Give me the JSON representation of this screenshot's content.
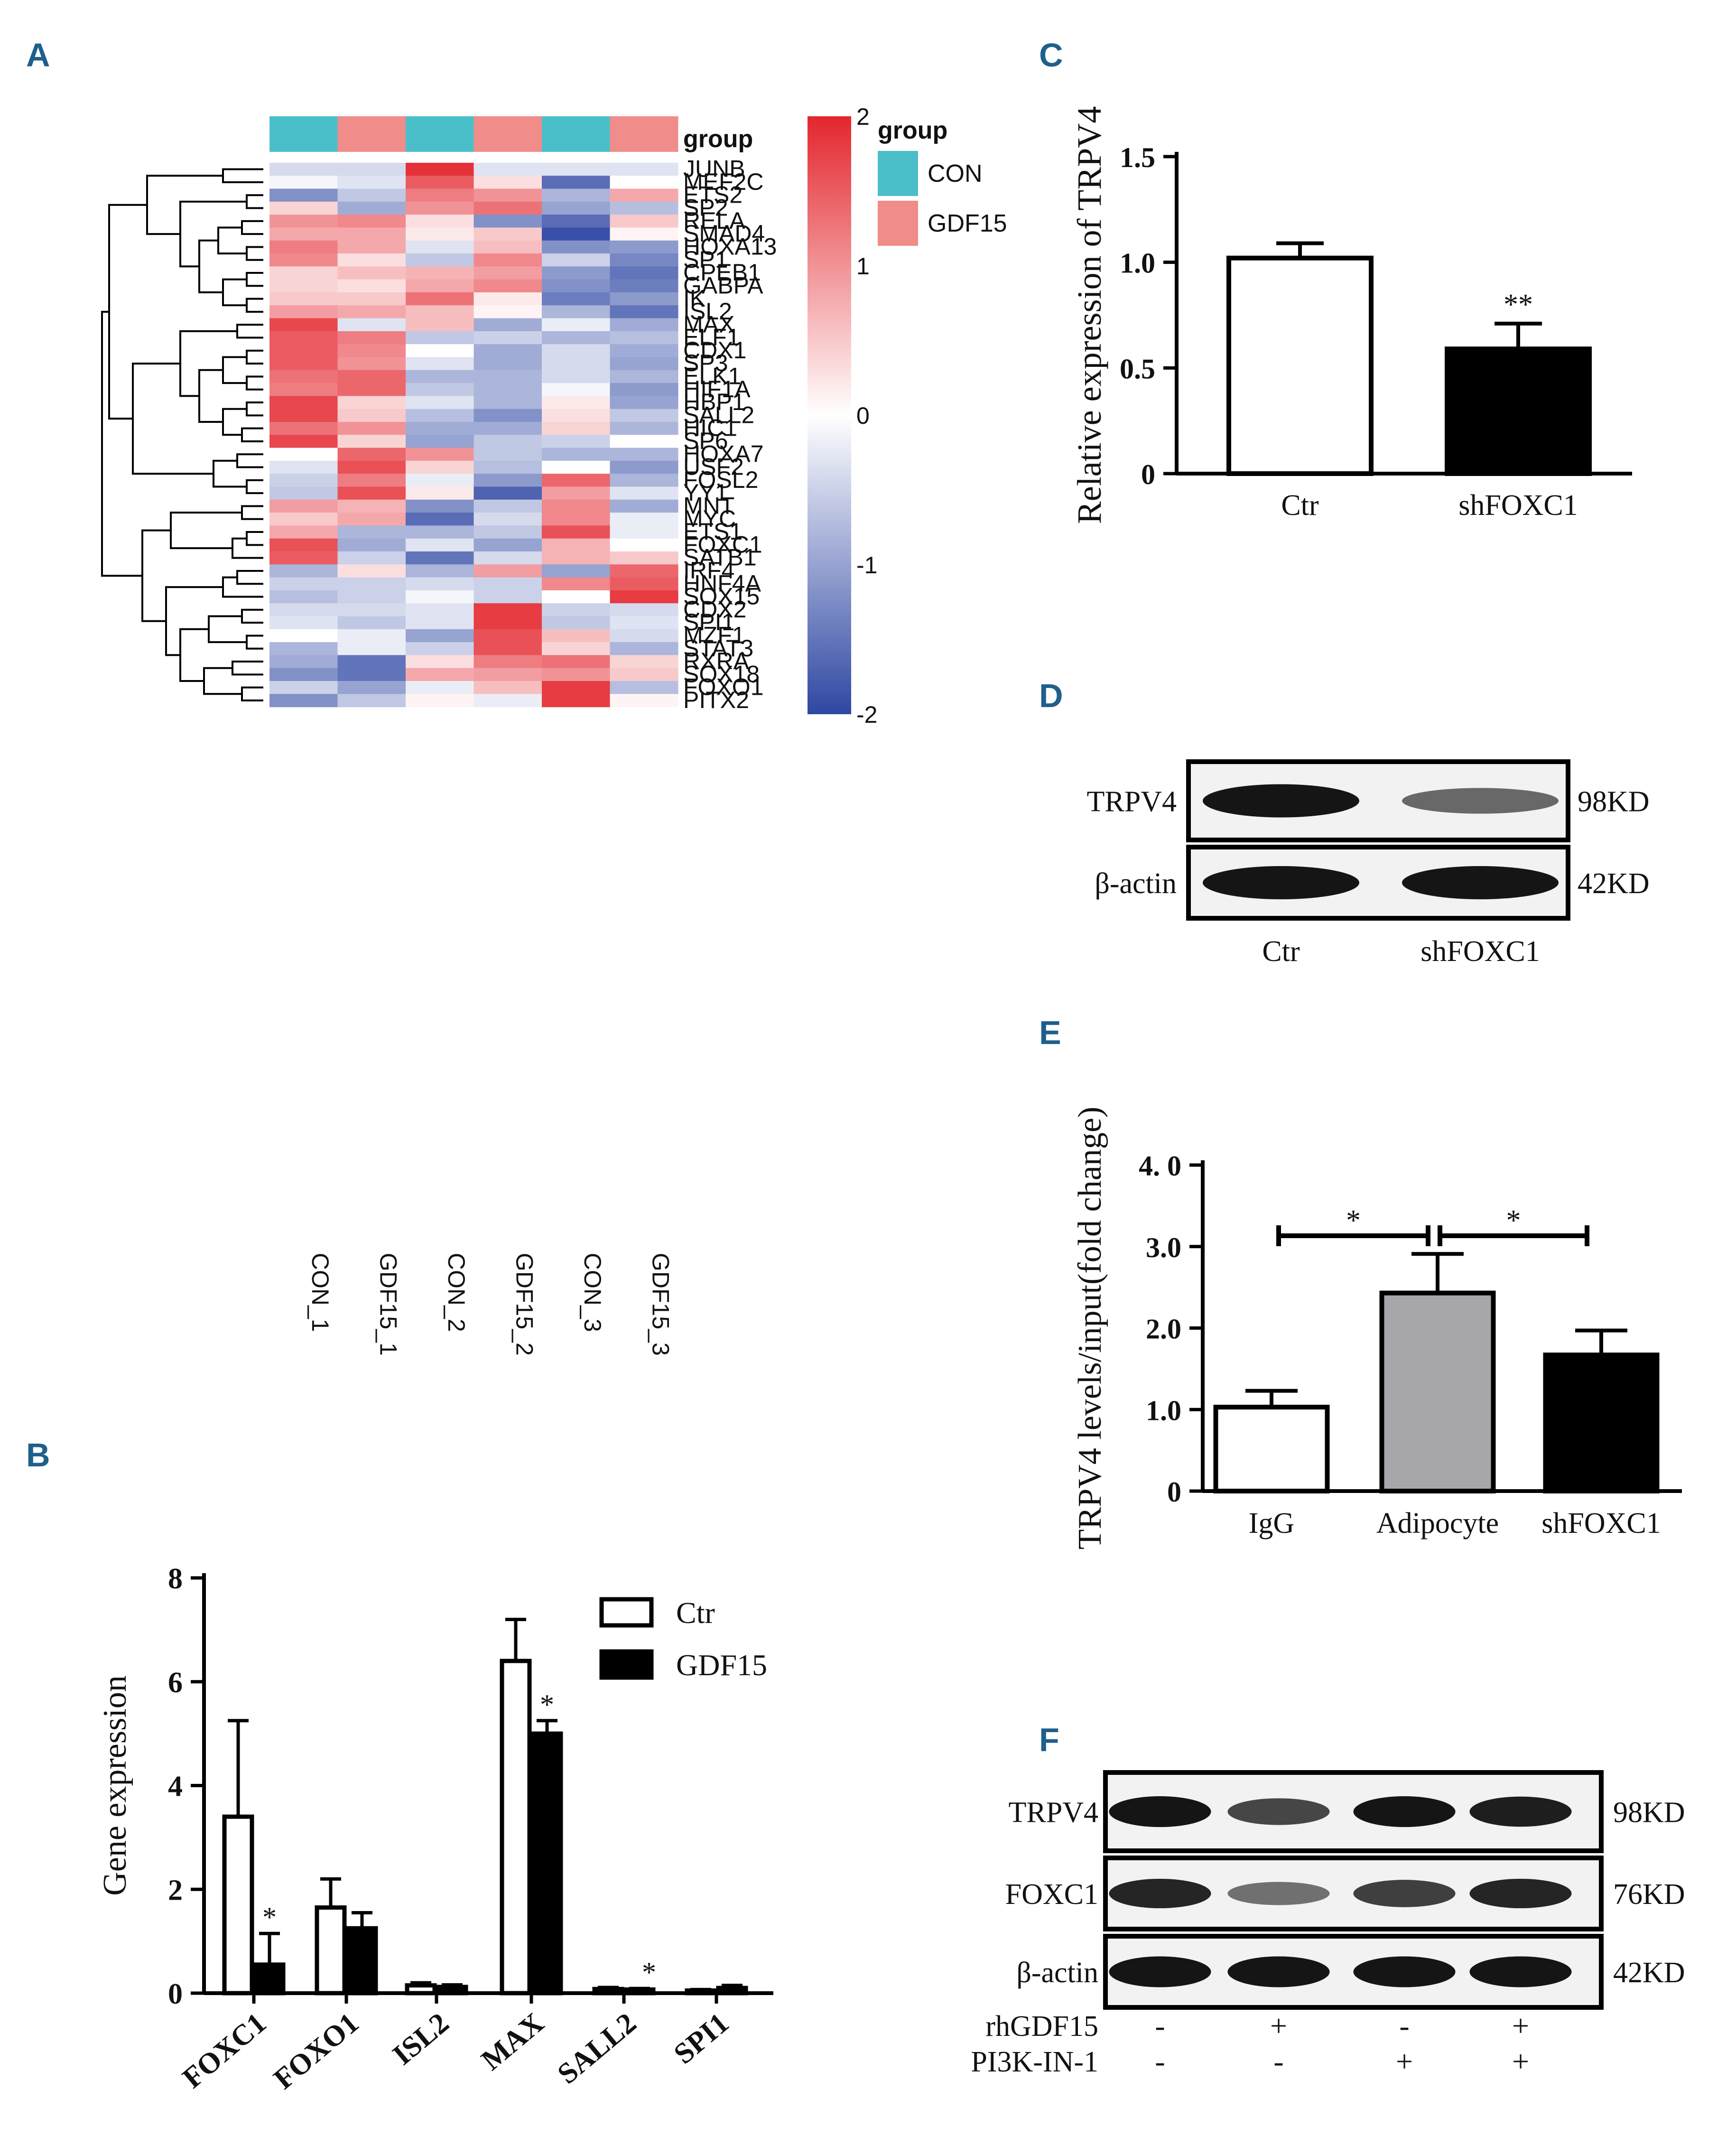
{
  "panels": {
    "a": "A",
    "b": "B",
    "c": "C",
    "d": "D",
    "e": "E",
    "f": "F"
  },
  "heatmap": {
    "samples": [
      "CON_1",
      "GDF15_1",
      "CON_2",
      "GDF15_2",
      "CON_3",
      "GDF15_3"
    ],
    "sample_groups": [
      "CON",
      "GDF15",
      "CON",
      "GDF15",
      "CON",
      "GDF15"
    ],
    "group_label": "group",
    "legend_title": "group",
    "legend_items": [
      {
        "label": "CON",
        "color": "#4bbfc9"
      },
      {
        "label": "GDF15",
        "color": "#f08c8a"
      }
    ],
    "scale_ticks": [
      "2",
      "1",
      "0",
      "-1",
      "-2"
    ],
    "scale_colors": {
      "high": "#e3262d",
      "mid": "#ffffff",
      "low": "#2f47a3"
    },
    "genes": [
      "JUNB",
      "MEF2C",
      "ETS2",
      "SP2",
      "RELA",
      "SMAD4",
      "HOXA13",
      "SP1",
      "CPEB1",
      "GABPA",
      "IK",
      "ISL2",
      "MAX",
      "ELF1",
      "CDX1",
      "SP3",
      "ELK1",
      "HIF1A",
      "HBP1",
      "SALL2",
      "HIC1",
      "SP6",
      "HOXA7",
      "USF2",
      "FOSL2",
      "YY1",
      "MNT",
      "MYC",
      "ETS1",
      "FOXC1",
      "SATB1",
      "IRF4",
      "HNF4A",
      "SOX15",
      "CDX2",
      "SPI1",
      "MZF1",
      "STAT3",
      "RXRA",
      "SOX18",
      "FOXO1",
      "PITX2"
    ],
    "values": [
      [
        -0.4,
        -0.4,
        1.9,
        -0.3,
        -0.3,
        -0.3
      ],
      [
        -0.1,
        -0.3,
        1.5,
        0.3,
        -1.6,
        0.0
      ],
      [
        -1.2,
        -0.6,
        1.2,
        1.0,
        -0.8,
        0.8
      ],
      [
        0.4,
        -0.9,
        1.0,
        1.3,
        -1.0,
        -0.7
      ],
      [
        1.0,
        1.1,
        0.3,
        -1.2,
        -1.6,
        0.5
      ],
      [
        0.8,
        0.8,
        0.2,
        0.5,
        -1.9,
        0.1
      ],
      [
        1.2,
        0.8,
        -0.3,
        0.6,
        -1.2,
        -1.1
      ],
      [
        1.1,
        0.3,
        -0.6,
        1.1,
        -0.5,
        -1.3
      ],
      [
        0.4,
        0.6,
        0.7,
        0.9,
        -1.1,
        -1.5
      ],
      [
        0.4,
        0.3,
        0.8,
        1.1,
        -1.2,
        -1.4
      ],
      [
        0.5,
        0.5,
        1.3,
        0.2,
        -1.4,
        -1.1
      ],
      [
        0.9,
        0.8,
        0.6,
        0.1,
        -0.8,
        -1.5
      ],
      [
        1.7,
        -0.3,
        0.6,
        -0.9,
        -0.2,
        -0.9
      ],
      [
        1.5,
        1.2,
        -0.6,
        -0.5,
        -0.8,
        -0.7
      ],
      [
        1.5,
        1.1,
        0.0,
        -0.9,
        -0.4,
        -0.9
      ],
      [
        1.5,
        1.0,
        -0.3,
        -0.9,
        -0.4,
        -1.0
      ],
      [
        1.3,
        1.4,
        -0.8,
        -0.8,
        -0.4,
        -0.8
      ],
      [
        1.2,
        1.4,
        -0.6,
        -0.8,
        -0.1,
        -1.1
      ],
      [
        1.7,
        0.4,
        -0.3,
        -0.8,
        0.2,
        -1.0
      ],
      [
        1.7,
        0.5,
        -0.7,
        -1.2,
        0.3,
        -0.6
      ],
      [
        1.3,
        1.0,
        -0.9,
        -0.9,
        0.4,
        -0.8
      ],
      [
        1.7,
        0.4,
        -1.0,
        -0.6,
        -0.5,
        0.0
      ],
      [
        0.0,
        1.4,
        1.0,
        -0.6,
        -0.8,
        -0.8
      ],
      [
        -0.3,
        1.6,
        0.4,
        -0.7,
        0.0,
        -1.1
      ],
      [
        -0.5,
        1.2,
        -0.2,
        -1.1,
        1.4,
        -0.8
      ],
      [
        -0.6,
        1.6,
        0.2,
        -1.7,
        0.9,
        -0.3
      ],
      [
        0.9,
        0.7,
        -1.2,
        -0.6,
        1.1,
        -0.9
      ],
      [
        0.5,
        0.8,
        -1.6,
        -0.4,
        1.1,
        -0.2
      ],
      [
        0.8,
        -0.8,
        -0.8,
        -0.6,
        1.6,
        -0.2
      ],
      [
        1.6,
        -0.9,
        -0.3,
        -1.0,
        0.7,
        0.0
      ],
      [
        1.5,
        -0.5,
        -1.5,
        -0.4,
        0.7,
        0.5
      ],
      [
        -0.8,
        0.3,
        -0.8,
        0.9,
        -1.0,
        1.4
      ],
      [
        -0.5,
        -0.5,
        -0.4,
        -0.5,
        1.1,
        1.5
      ],
      [
        -0.7,
        -0.5,
        -0.1,
        -0.5,
        0.0,
        1.8
      ],
      [
        -0.4,
        -0.4,
        -0.3,
        1.8,
        -0.5,
        -0.4
      ],
      [
        -0.3,
        -0.6,
        -0.3,
        1.8,
        -0.6,
        -0.3
      ],
      [
        0.0,
        -0.2,
        -1.0,
        1.6,
        0.6,
        -0.4
      ],
      [
        -0.8,
        -0.2,
        -0.5,
        1.6,
        0.4,
        -0.8
      ],
      [
        -0.9,
        -1.5,
        0.3,
        1.2,
        1.3,
        0.4
      ],
      [
        -1.2,
        -1.5,
        0.8,
        0.9,
        1.0,
        0.5
      ],
      [
        -0.5,
        -1.0,
        -0.2,
        0.6,
        1.8,
        -0.7
      ],
      [
        -1.2,
        -0.6,
        0.1,
        -0.2,
        1.8,
        0.1
      ]
    ]
  },
  "chart_data": [
    {
      "panel": "B",
      "type": "bar",
      "categories": [
        "FOXC1",
        "FOXO1",
        "ISL2",
        "MAX",
        "SALL2",
        "SPI1"
      ],
      "series": [
        {
          "name": "Ctr",
          "values": [
            3.4,
            1.65,
            0.15,
            6.4,
            0.08,
            0.05
          ],
          "errors": [
            1.85,
            0.55,
            0.05,
            0.8,
            0.03,
            0.02
          ]
        },
        {
          "name": "GDF15",
          "values": [
            0.55,
            1.25,
            0.12,
            5.0,
            0.07,
            0.1
          ],
          "errors": [
            0.6,
            0.3,
            0.04,
            0.25,
            0.02,
            0.05
          ]
        }
      ],
      "significance": [
        "*",
        "",
        "",
        "*",
        "*",
        ""
      ],
      "ylabel": "Gene expression",
      "ylim": [
        0,
        8
      ],
      "yticks": [
        "0",
        "2",
        "4",
        "6",
        "8"
      ]
    },
    {
      "panel": "C",
      "type": "bar",
      "categories": [
        "Ctr",
        "shFOXC1"
      ],
      "values": [
        1.02,
        0.59
      ],
      "errors": [
        0.07,
        0.12
      ],
      "colors": [
        "#ffffff",
        "#000000"
      ],
      "significance": [
        "",
        "**"
      ],
      "ylabel": "Relative expression of TRPV4",
      "ylim": [
        0,
        1.5
      ],
      "yticks": [
        "0",
        "0.5",
        "1.0",
        "1.5"
      ]
    },
    {
      "panel": "E",
      "type": "bar",
      "categories": [
        "IgG",
        "Adipocyte",
        "shFOXC1"
      ],
      "values": [
        1.03,
        2.43,
        1.67
      ],
      "errors": [
        0.2,
        0.48,
        0.3
      ],
      "colors": [
        "#ffffff",
        "#a7a7ab",
        "#000000"
      ],
      "brackets": [
        "*",
        "*"
      ],
      "ylabel": "TRPV4 levels/input(fold change)",
      "ylim": [
        0,
        4
      ],
      "yticks": [
        "0",
        "1.0",
        "2.0",
        "3.0",
        "4. 0"
      ]
    }
  ],
  "blots": {
    "d": {
      "rows": [
        {
          "protein": "TRPV4",
          "size": "98KD"
        },
        {
          "protein": "β-actin",
          "size": "42KD"
        }
      ],
      "lanes": [
        "Ctr",
        "shFOXC1"
      ],
      "intensity": [
        [
          1.0,
          0.5
        ],
        [
          1.0,
          1.0
        ]
      ]
    },
    "f": {
      "rows": [
        {
          "protein": "TRPV4",
          "size": "98KD"
        },
        {
          "protein": "FOXC1",
          "size": "76KD"
        },
        {
          "protein": "β-actin",
          "size": "42KD"
        }
      ],
      "intensity": [
        [
          1.0,
          0.7,
          1.0,
          0.95
        ],
        [
          0.9,
          0.45,
          0.75,
          0.9
        ],
        [
          1.0,
          1.0,
          1.0,
          1.0
        ]
      ],
      "conditions": [
        {
          "label": "rhGDF15",
          "marks": [
            "-",
            "+",
            "-",
            "+"
          ]
        },
        {
          "label": "PI3K-IN-1",
          "marks": [
            "-",
            "-",
            "+",
            "+"
          ]
        }
      ]
    }
  }
}
